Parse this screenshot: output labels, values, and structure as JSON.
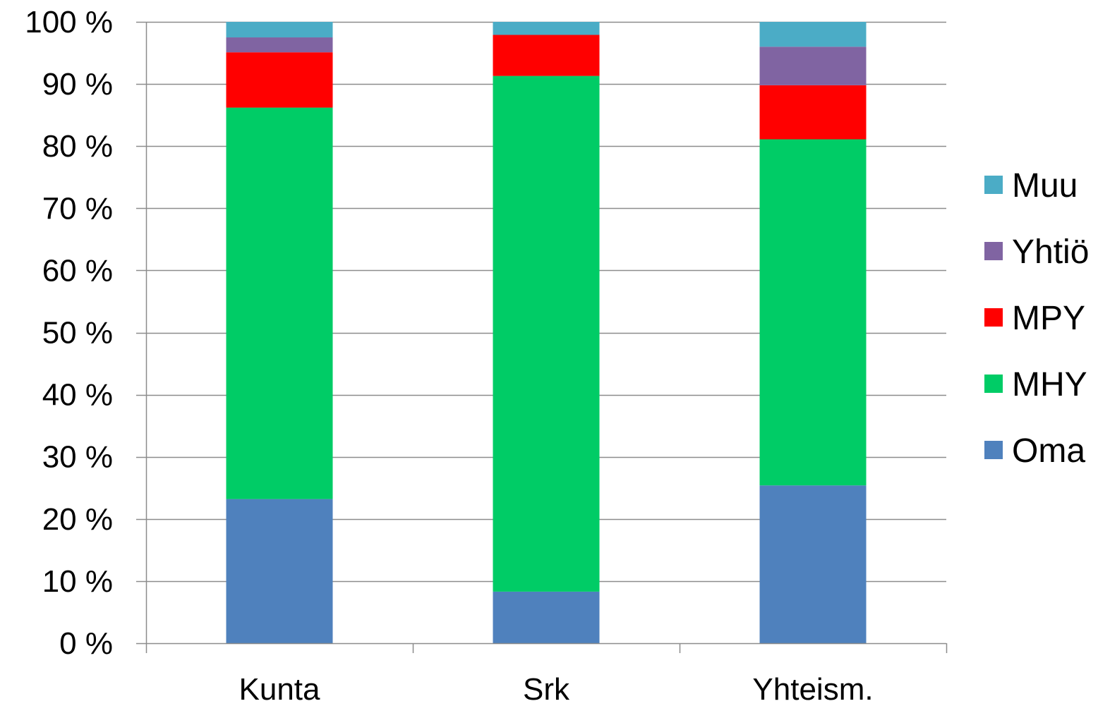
{
  "chart_data": {
    "type": "bar",
    "stacked": true,
    "percent": true,
    "title": "",
    "xlabel": "",
    "ylabel": "",
    "categories": [
      "Kunta",
      "Srk",
      "Yhteism."
    ],
    "ylim": [
      0,
      100
    ],
    "yticks": [
      0,
      10,
      20,
      30,
      40,
      50,
      60,
      70,
      80,
      90,
      100
    ],
    "ytick_labels": [
      "0 %",
      "10 %",
      "20 %",
      "30 %",
      "40 %",
      "50 %",
      "60 %",
      "70 %",
      "80 %",
      "90 %",
      "100 %"
    ],
    "grid": true,
    "legend_position": "right",
    "series": [
      {
        "name": "Oma",
        "color": "#4F81BD",
        "values": [
          23.2,
          8.3,
          25.4
        ]
      },
      {
        "name": "MHY",
        "color": "#00CC66",
        "values": [
          63.0,
          83.0,
          55.7
        ]
      },
      {
        "name": "MPY",
        "color": "#FF0000",
        "values": [
          8.9,
          6.6,
          8.7
        ]
      },
      {
        "name": "Yhtiö",
        "color": "#8064A2",
        "values": [
          2.4,
          0.0,
          6.2
        ]
      },
      {
        "name": "Muu",
        "color": "#4BACC6",
        "values": [
          2.5,
          2.1,
          4.0
        ]
      }
    ]
  }
}
